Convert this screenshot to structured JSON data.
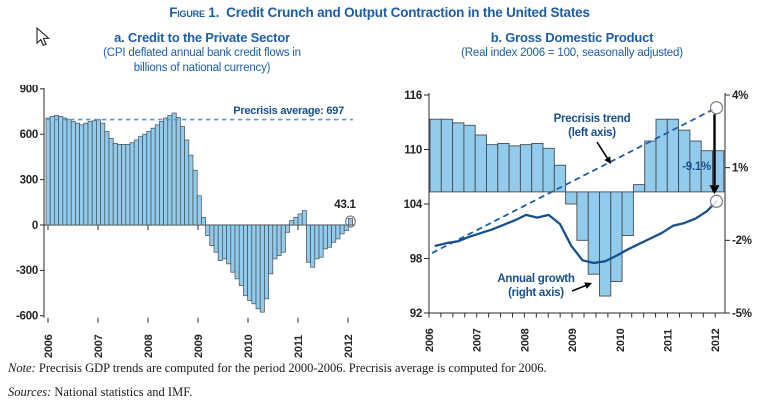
{
  "figure": {
    "title_smallcaps": "Figure 1.",
    "title": "Credit Crunch and Output Contraction in the United States"
  },
  "panels": {
    "a": {
      "title": "a. Credit to the Private Sector",
      "subtitle_line1": "(CPI deflated annual bank credit flows in",
      "subtitle_line2": "billions of national currency)"
    },
    "b": {
      "title": "b. Gross Domestic Product",
      "subtitle": "(Real index 2006 = 100, seasonally adjusted)"
    }
  },
  "notes": {
    "note_label": "Note:",
    "note_text": " Precrisis GDP trends are computed for the period 2000-2006. Precrisis average is computed for 2006.",
    "sources_label": "Sources:",
    "sources_text": " National statistics and IMF."
  },
  "colors": {
    "accent_blue": "#1e5ca6",
    "annotation_blue": "#17508c",
    "bar_fill": "#92cbec",
    "bar_stroke": "#454d54",
    "dashed_avg": "#5b9bd5",
    "trend_blue": "#1d5fa6",
    "gdp_line": "#17508c",
    "axis_color": "#2b2b2b",
    "tick_text": "#252525",
    "arrow_black": "#000000",
    "circle_gray": "#7d7d7d"
  },
  "chart_data": [
    {
      "type": "bar",
      "panel": "a",
      "title": "a. Credit to the Private Sector",
      "subtitle": "CPI deflated annual bank credit flows in billions of national currency",
      "frequency": "monthly",
      "x_start": "2006-01",
      "x_end": "2012-01",
      "xticklabels": [
        "2006",
        "2007",
        "2008",
        "2009",
        "2010",
        "2011",
        "2012"
      ],
      "yticks": [
        900,
        600,
        300,
        0,
        -300,
        -600
      ],
      "ylim": [
        -650,
        900
      ],
      "values": [
        707,
        718,
        724,
        718,
        707,
        696,
        684,
        673,
        662,
        673,
        684,
        689,
        696,
        673,
        618,
        573,
        540,
        533,
        533,
        533,
        544,
        562,
        584,
        600,
        618,
        640,
        662,
        684,
        707,
        724,
        740,
        711,
        651,
        562,
        462,
        362,
        193,
        50,
        -70,
        -136,
        -180,
        -235,
        -224,
        -257,
        -312,
        -356,
        -400,
        -466,
        -499,
        -521,
        -554,
        -576,
        -488,
        -323,
        -224,
        -202,
        -180,
        -48,
        29,
        51,
        73,
        95,
        -246,
        -279,
        -224,
        -213,
        -158,
        -147,
        -114,
        -92,
        -59,
        -37,
        43.1
      ],
      "reference_line": {
        "value": 697,
        "label": "Precrisis average: 697"
      },
      "last_point": {
        "value": 43.1,
        "label": "43.1",
        "circled": true
      }
    },
    {
      "type": "bar+line",
      "panel": "b",
      "title": "b. Gross Domestic Product",
      "subtitle": "Real index 2006 = 100, seasonally adjusted",
      "frequency": "quarterly",
      "categories": [
        "2006Q1",
        "2006Q2",
        "2006Q3",
        "2006Q4",
        "2007Q1",
        "2007Q2",
        "2007Q3",
        "2007Q4",
        "2008Q1",
        "2008Q2",
        "2008Q3",
        "2008Q4",
        "2009Q1",
        "2009Q2",
        "2009Q3",
        "2009Q4",
        "2010Q1",
        "2010Q2",
        "2010Q3",
        "2010Q4",
        "2011Q1",
        "2011Q2",
        "2011Q3",
        "2011Q4",
        "2012Q1",
        "2012Q2"
      ],
      "xticklabels": [
        "2006",
        "2007",
        "2008",
        "2009",
        "2010",
        "2011",
        "2012"
      ],
      "left_axis": {
        "ticks": [
          116,
          110,
          104,
          98,
          92
        ],
        "lim": [
          92,
          116
        ]
      },
      "right_axis": {
        "ticks": [
          "4%",
          "1%",
          "-2%",
          "-5%"
        ],
        "lim_pct": [
          -5,
          4
        ]
      },
      "series": [
        {
          "name": "Annual growth (right axis)",
          "type": "bar",
          "axis": "right",
          "values_pct": [
            3.0,
            3.0,
            2.85,
            2.75,
            2.35,
            1.95,
            2.0,
            1.9,
            1.95,
            2.0,
            1.8,
            1.1,
            -0.5,
            -2.0,
            -3.4,
            -4.3,
            -3.7,
            -1.8,
            0.3,
            2.1,
            3.0,
            3.0,
            2.55,
            2.1,
            1.7,
            1.7
          ]
        },
        {
          "name": "GDP real index (left axis)",
          "type": "line",
          "axis": "left",
          "values": [
            99.4,
            99.7,
            99.9,
            100.4,
            100.8,
            101.2,
            101.7,
            102.2,
            102.8,
            102.5,
            102.8,
            101.8,
            99.4,
            97.8,
            97.5,
            97.7,
            98.3,
            99.0,
            99.6,
            100.2,
            100.8,
            101.6,
            101.9,
            102.4,
            103.2,
            104.3
          ]
        },
        {
          "name": "Precrisis trend (left axis)",
          "type": "dashed-line",
          "axis": "left",
          "start_value": 98.6,
          "end_value": 114.6
        }
      ],
      "annotations": [
        {
          "id": "trend-label",
          "line1": "Precrisis trend",
          "line2": "(left axis)"
        },
        {
          "id": "growth-label",
          "line1": "Annual growth",
          "line2": "(right axis)"
        },
        {
          "id": "gap-label",
          "text": "-9.1%"
        }
      ]
    }
  ]
}
